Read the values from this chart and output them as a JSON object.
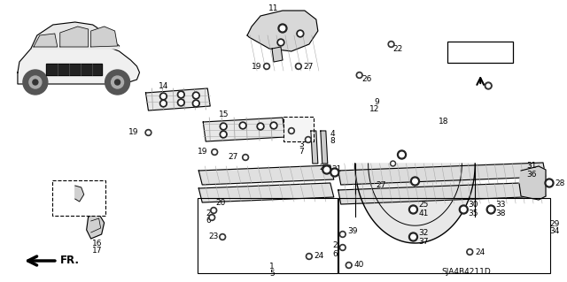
{
  "background_color": "#ffffff",
  "line_color": "#000000",
  "text_color": "#000000",
  "fs": 6.5,
  "fs_bold": 7.5,
  "diagram_code": "SJA4B4211D"
}
